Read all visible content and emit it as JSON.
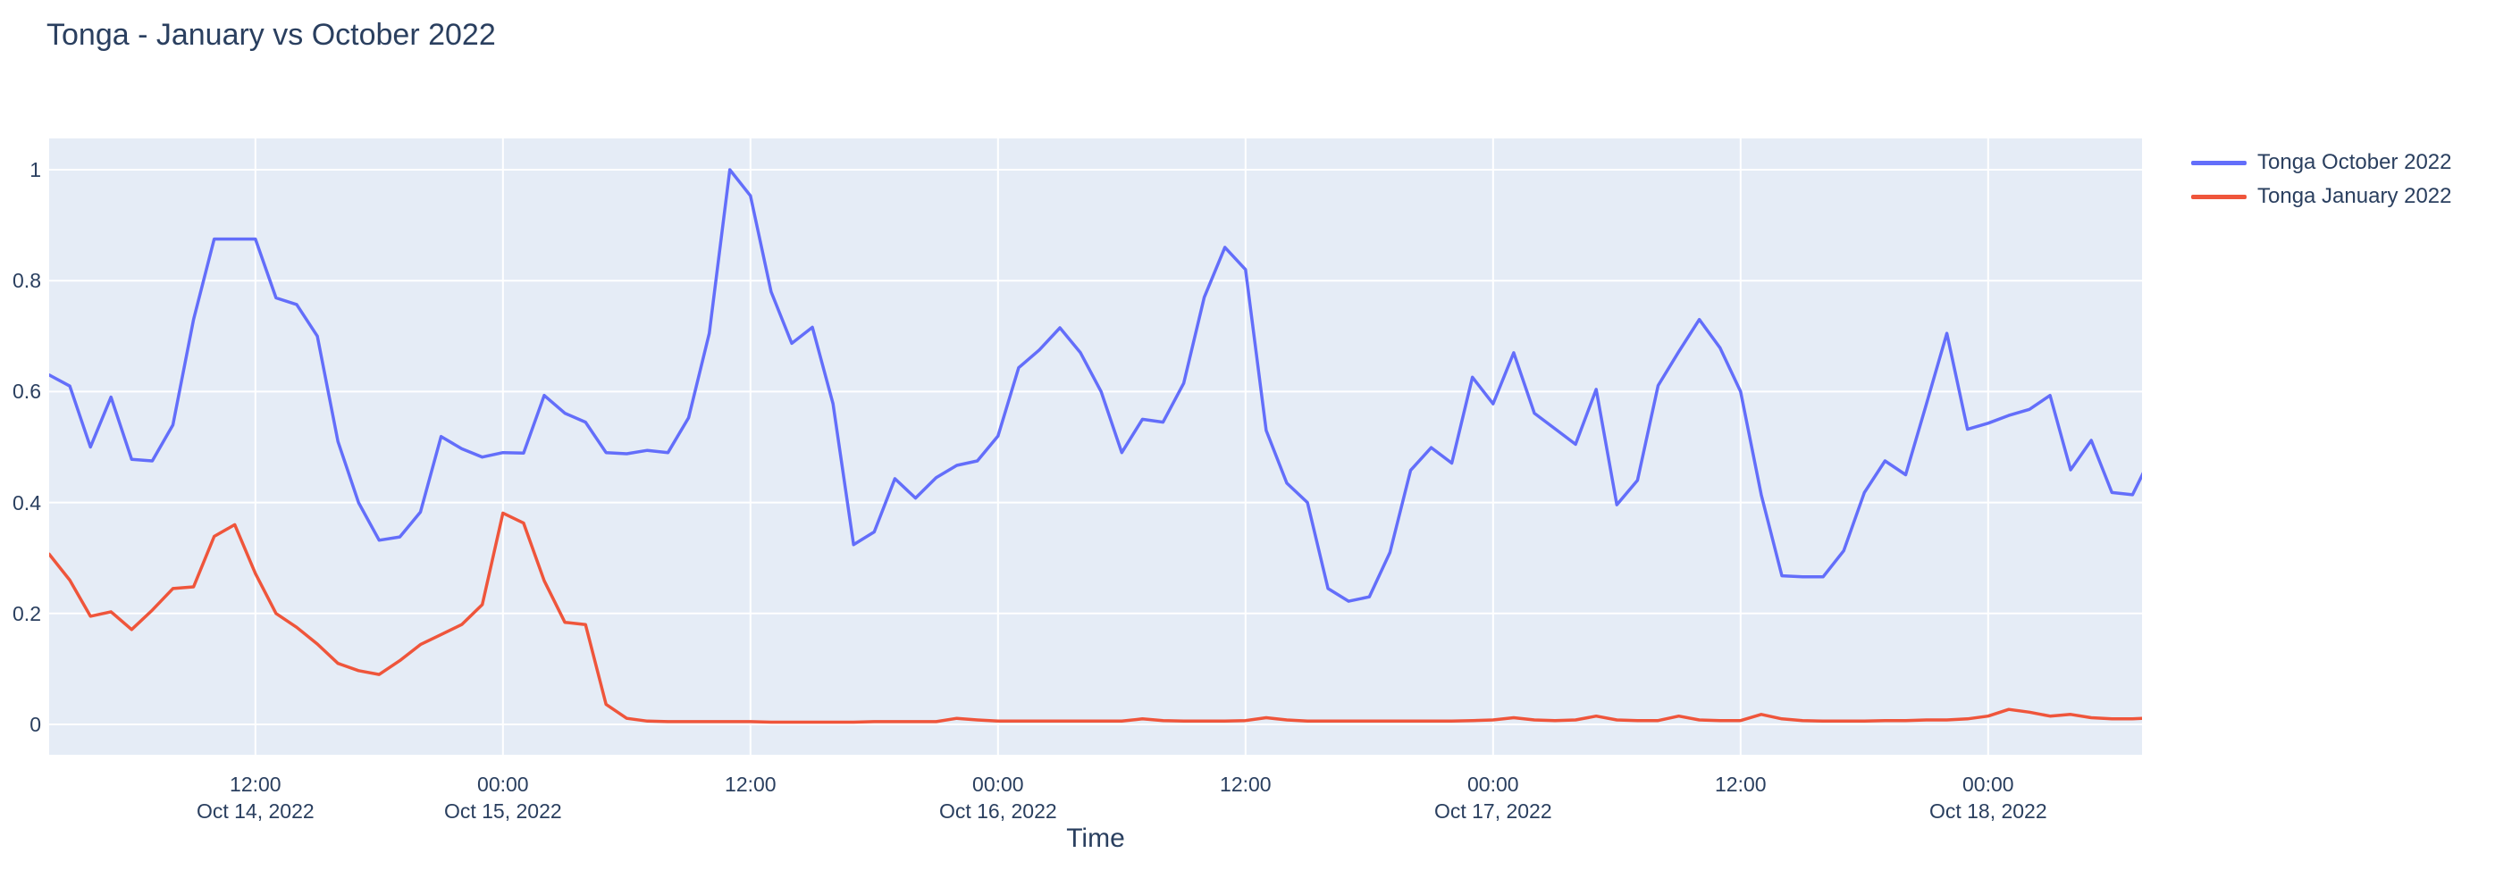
{
  "header": {
    "title": "Tonga - January vs October 2022"
  },
  "chart_data": {
    "type": "line",
    "title": "Tonga - January vs October 2022",
    "xlabel": "Time",
    "ylabel": "",
    "x_start": "2022-10-14 02:00",
    "x_interval_hours": 1,
    "n_points": 103,
    "ylim": [
      -0.055,
      1.057
    ],
    "xlim_hours": [
      0,
      101.5
    ],
    "grid": true,
    "legend_position": "top-right",
    "colors": {
      "plot_background": "#e5ecf6",
      "grid": "#ffffff",
      "text": "#2a3f5f",
      "paper": "#ffffff"
    },
    "y_ticks": [
      {
        "value": 0,
        "label": "0"
      },
      {
        "value": 0.2,
        "label": "0.2"
      },
      {
        "value": 0.4,
        "label": "0.4"
      },
      {
        "value": 0.6,
        "label": "0.6"
      },
      {
        "value": 0.8,
        "label": "0.8"
      },
      {
        "value": 1,
        "label": "1"
      }
    ],
    "x_ticks": [
      {
        "hour": 10,
        "line1": "12:00",
        "line2": "Oct 14, 2022"
      },
      {
        "hour": 22,
        "line1": "00:00",
        "line2": "Oct 15, 2022"
      },
      {
        "hour": 34,
        "line1": "12:00",
        "line2": ""
      },
      {
        "hour": 46,
        "line1": "00:00",
        "line2": "Oct 16, 2022"
      },
      {
        "hour": 58,
        "line1": "12:00",
        "line2": ""
      },
      {
        "hour": 70,
        "line1": "00:00",
        "line2": "Oct 17, 2022"
      },
      {
        "hour": 82,
        "line1": "12:00",
        "line2": ""
      },
      {
        "hour": 94,
        "line1": "00:00",
        "line2": "Oct 18, 2022"
      }
    ],
    "series": [
      {
        "name": "Tonga October 2022",
        "color": "#636efa",
        "values": [
          0.63,
          0.61,
          0.5,
          0.59,
          0.478,
          0.475,
          0.54,
          0.73,
          0.875,
          0.875,
          0.875,
          0.769,
          0.757,
          0.7,
          0.51,
          0.4,
          0.332,
          0.338,
          0.383,
          0.519,
          0.497,
          0.482,
          0.49,
          0.489,
          0.593,
          0.561,
          0.545,
          0.49,
          0.488,
          0.494,
          0.49,
          0.553,
          0.705,
          1.0,
          0.953,
          0.78,
          0.687,
          0.716,
          0.578,
          0.324,
          0.347,
          0.443,
          0.408,
          0.445,
          0.467,
          0.475,
          0.52,
          0.643,
          0.675,
          0.715,
          0.67,
          0.6,
          0.49,
          0.55,
          0.545,
          0.615,
          0.77,
          0.86,
          0.82,
          0.53,
          0.435,
          0.4,
          0.245,
          0.222,
          0.23,
          0.31,
          0.458,
          0.499,
          0.471,
          0.626,
          0.578,
          0.67,
          0.561,
          0.533,
          0.505,
          0.604,
          0.396,
          0.44,
          0.611,
          0.672,
          0.73,
          0.679,
          0.6,
          0.414,
          0.268,
          0.266,
          0.266,
          0.313,
          0.418,
          0.475,
          0.45,
          0.577,
          0.705,
          0.532,
          0.543,
          0.557,
          0.568,
          0.593,
          0.459,
          0.512,
          0.418,
          0.414,
          0.49
        ]
      },
      {
        "name": "Tonga January 2022",
        "color": "#ef553b",
        "values": [
          0.307,
          0.26,
          0.195,
          0.203,
          0.171,
          0.206,
          0.245,
          0.248,
          0.339,
          0.36,
          0.272,
          0.2,
          0.175,
          0.145,
          0.11,
          0.097,
          0.09,
          0.115,
          0.144,
          0.162,
          0.18,
          0.216,
          0.381,
          0.363,
          0.259,
          0.184,
          0.18,
          0.036,
          0.011,
          0.006,
          0.005,
          0.005,
          0.005,
          0.005,
          0.005,
          0.004,
          0.004,
          0.004,
          0.004,
          0.004,
          0.005,
          0.005,
          0.005,
          0.005,
          0.011,
          0.008,
          0.006,
          0.006,
          0.006,
          0.006,
          0.006,
          0.006,
          0.006,
          0.01,
          0.007,
          0.006,
          0.006,
          0.006,
          0.007,
          0.012,
          0.008,
          0.006,
          0.006,
          0.006,
          0.006,
          0.006,
          0.006,
          0.006,
          0.006,
          0.007,
          0.008,
          0.012,
          0.008,
          0.007,
          0.008,
          0.015,
          0.008,
          0.007,
          0.007,
          0.015,
          0.008,
          0.007,
          0.007,
          0.018,
          0.01,
          0.007,
          0.006,
          0.006,
          0.006,
          0.007,
          0.007,
          0.008,
          0.008,
          0.01,
          0.015,
          0.027,
          0.022,
          0.015,
          0.018,
          0.012,
          0.01,
          0.01,
          0.012
        ]
      }
    ]
  }
}
